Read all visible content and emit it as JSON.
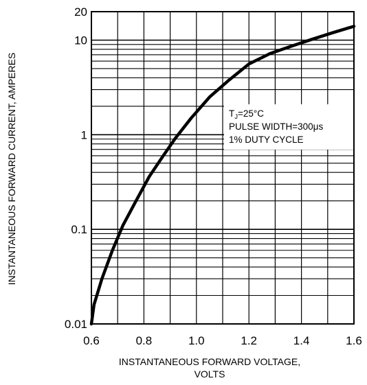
{
  "chart_data": {
    "type": "line",
    "title": "",
    "xlabel_line1": "INSTANTANEOUS FORWARD VOLTAGE,",
    "xlabel_line2": "VOLTS",
    "ylabel": "INSTANTANEOUS FORWARD CURRENT, AMPERES",
    "x_scale": "linear",
    "y_scale": "log",
    "xlim": [
      0.6,
      1.6
    ],
    "ylim": [
      0.01,
      20
    ],
    "grid": true,
    "x_ticks": [
      "0.6",
      "0.8",
      "1.0",
      "1.2",
      "1.4",
      "1.6"
    ],
    "y_ticks": [
      {
        "value": 0.01,
        "label": "0.01"
      },
      {
        "value": 0.1,
        "label": "0.1"
      },
      {
        "value": 1,
        "label": "1"
      },
      {
        "value": 10,
        "label": "10"
      },
      {
        "value": 20,
        "label": "20"
      }
    ],
    "annotation": {
      "tj_main": "T",
      "tj_sub": "J",
      "tj_rest": "=25°C",
      "line2": "PULSE WIDTH=300μs",
      "line3": "1% DUTY CYCLE"
    },
    "series": [
      {
        "x": [
          0.6,
          0.61,
          0.64,
          0.68,
          0.72,
          0.77,
          0.82,
          0.87,
          0.92,
          0.98,
          1.05,
          1.12,
          1.2,
          1.28,
          1.36,
          1.44,
          1.52,
          1.6
        ],
        "y": [
          0.01,
          0.016,
          0.03,
          0.06,
          0.11,
          0.2,
          0.36,
          0.58,
          0.92,
          1.5,
          2.5,
          3.7,
          5.6,
          7.2,
          8.6,
          10.2,
          12.0,
          14.0
        ]
      }
    ]
  }
}
